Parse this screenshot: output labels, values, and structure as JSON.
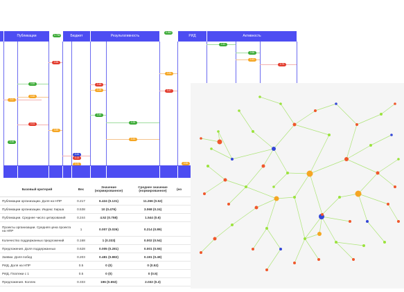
{
  "headers": {
    "publications": "Публикации",
    "budget": "Бюджет",
    "results": "Результативность",
    "rid": "РИД",
    "activity": "Активность"
  },
  "header_badges": {
    "publications": "0.756",
    "results": "0.862"
  },
  "pills": {
    "p1": "0.3",
    "p2": "0.49",
    "p3": "0.59",
    "p4": "0.46",
    "p5": "0.31",
    "p6": "0.55",
    "p7": "0.89",
    "p8": "0.44",
    "p9": "0.13",
    "p10": "0.31",
    "p11": "0.48",
    "p12": "0.28",
    "p13": "0.46",
    "p14": "0.39",
    "p15": "0.44",
    "p16": "0.84",
    "p17": "0.47",
    "p18": "0.56",
    "p19": "0.42",
    "p20": "0.66",
    "p21": "0.43",
    "p22": "0.79"
  },
  "table": {
    "columns": [
      "Базовый критерий",
      "Вес",
      "Значение (нормированное)",
      "Среднее значение (нормированное)",
      "(но"
    ],
    "rows": [
      [
        "Публикации организации. Доля на НПР",
        "0.217",
        "6.424 (0.131)",
        "11.266 (0.52)"
      ],
      [
        "Публикации организации. Индекс Хирша",
        "0.538",
        "10 (0.476)",
        "3.068 (0.24)"
      ],
      [
        "Публикации. Среднее число цитирований",
        "0.244",
        "4.52 (0.758)",
        "1.544 (0.6)"
      ],
      [
        "Проекты организации. Средняя цена проекта на НПР",
        "1",
        "0.007 (0.026)",
        "0.214 (0.89)"
      ],
      [
        "Количество поддержанных предложений",
        "0.168",
        "1 (0.333)",
        "0.002 (0.54)"
      ],
      [
        "Предложения. Доля поддержанных",
        "0.628",
        "0.005 (0.281)",
        "0.001 (0.55)"
      ],
      [
        "Заявки. Доля побед",
        "0.203",
        "0.481 (0.882)",
        "0.191 (0.49)"
      ],
      [
        "РИД. Доля на НПР",
        "0.5",
        "0 (0)",
        "0 (0.52)"
      ],
      [
        "РИД. Платежи с 1",
        "0.5",
        "0 (0)",
        "0 (0.5)"
      ],
      [
        "Предложения. Коллек",
        "0.333",
        "196 (0.653)",
        "2.032 (0.3)"
      ]
    ]
  },
  "colors": {
    "header_blue": "#4d4df2",
    "node_orange": "#f5a623",
    "node_red": "#f0572b",
    "node_blue": "#3446d8",
    "node_green": "#9be33c",
    "edge_green": "#a6e36a"
  }
}
